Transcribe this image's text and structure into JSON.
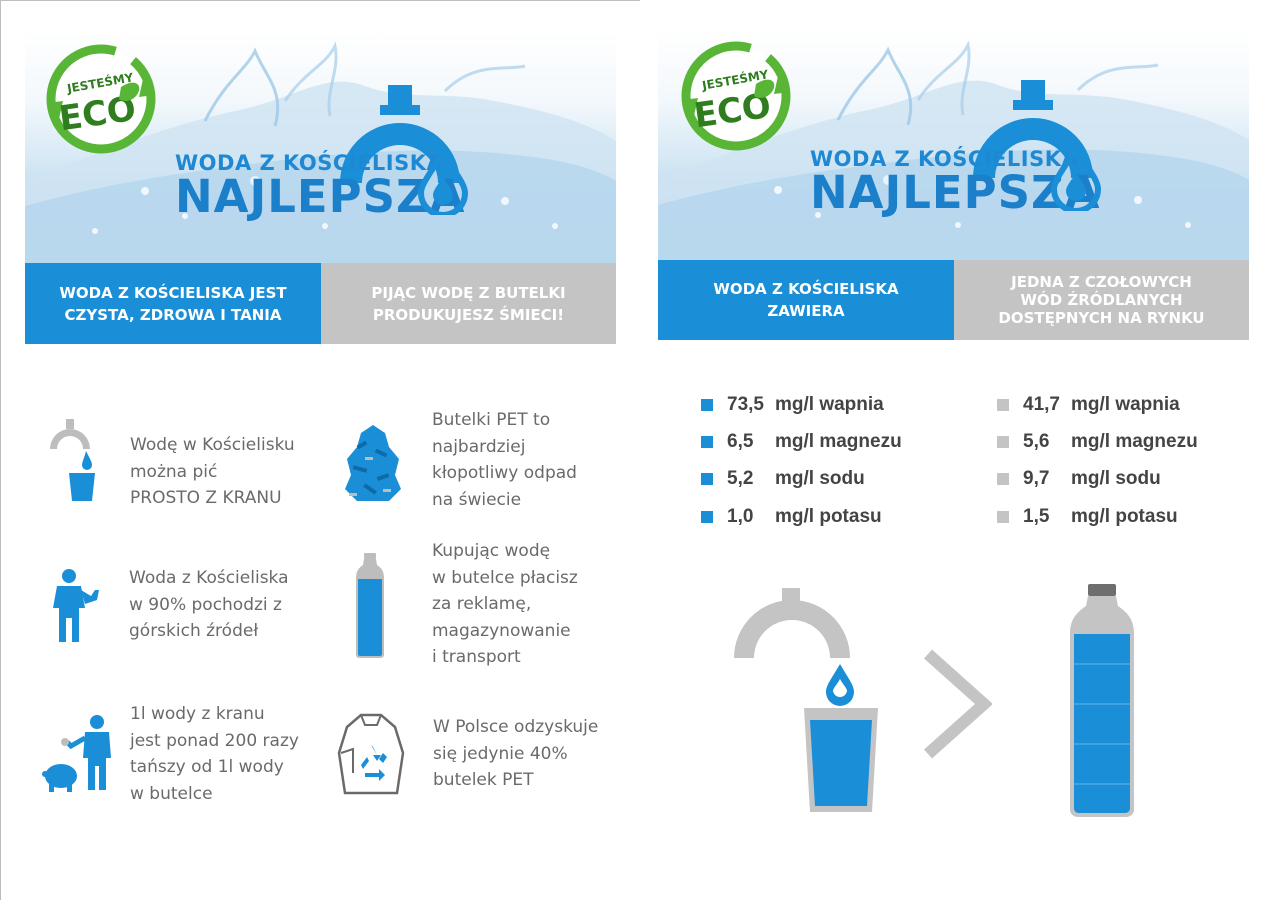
{
  "left": {
    "eco_badge": {
      "top": "JESTEŚMY",
      "main": "ECO"
    },
    "brand": {
      "line1": "WODA Z KOŚCIELISKA",
      "line2": "NAJLEPSZA"
    },
    "bands": {
      "blue": [
        "WODA Z KOŚCIELISKA JEST",
        "CZYSTA, ZDROWA I TANIA"
      ],
      "gray": [
        "PIJĄC WODĘ Z BUTELKI",
        "PRODUKUJESZ ŚMIECI!"
      ]
    },
    "features": [
      {
        "icon": "tap-glass-icon",
        "lines": [
          "Wodę w Kościelisku",
          "można pić",
          "PROSTO Z KRANU"
        ]
      },
      {
        "icon": "bottle-pile-icon",
        "lines": [
          "Butelki PET to",
          "najbardziej",
          "kłopotliwy odpad",
          "na świecie"
        ]
      },
      {
        "icon": "person-thumbs-up-icon",
        "lines": [
          "Woda z Kościeliska",
          "w 90% pochodzi z",
          "górskich źródeł"
        ]
      },
      {
        "icon": "plastic-bottle-icon",
        "lines": [
          "Kupując wodę",
          "w butelce płacisz",
          "za reklamę,",
          "magazynowanie",
          "i transport"
        ]
      },
      {
        "icon": "person-piggy-bank-icon",
        "lines": [
          "1l wody z kranu",
          "jest ponad 200 razy",
          "tańszy od 1l wody",
          "w butelce"
        ]
      },
      {
        "icon": "recycling-bag-icon",
        "lines": [
          "W Polsce odzyskuje",
          "się jedynie 40%",
          "butelek PET"
        ]
      }
    ]
  },
  "right": {
    "eco_badge": {
      "top": "JESTEŚMY",
      "main": "ECO"
    },
    "brand": {
      "line1": "WODA Z KOŚCIELISKA",
      "line2": "NAJLEPSZA"
    },
    "bands": {
      "blue": [
        "WODA Z KOŚCIELISKA",
        "ZAWIERA"
      ],
      "gray": [
        "JEDNA Z CZOŁOWYCH",
        "WÓD ŹRÓDLANYCH",
        "DOSTĘPNYCH NA RYNKU"
      ]
    },
    "minerals_tap": [
      {
        "value": "73,5",
        "label": "mg/l wapnia"
      },
      {
        "value": "6,5",
        "label": "mg/l magnezu"
      },
      {
        "value": "5,2",
        "label": "mg/l sodu"
      },
      {
        "value": "1,0",
        "label": "mg/l potasu"
      }
    ],
    "minerals_bottled": [
      {
        "value": "41,7",
        "label": "mg/l wapnia"
      },
      {
        "value": "5,6",
        "label": "mg/l magnezu"
      },
      {
        "value": "9,7",
        "label": "mg/l sodu"
      },
      {
        "value": "1,5",
        "label": "mg/l potasu"
      }
    ]
  },
  "colors": {
    "blue": "#1b8ed8",
    "gray": "#c4c4c4",
    "text_gray": "#6a6a6a",
    "eco_green": "#58b535",
    "eco_dark": "#2f7d1f"
  }
}
